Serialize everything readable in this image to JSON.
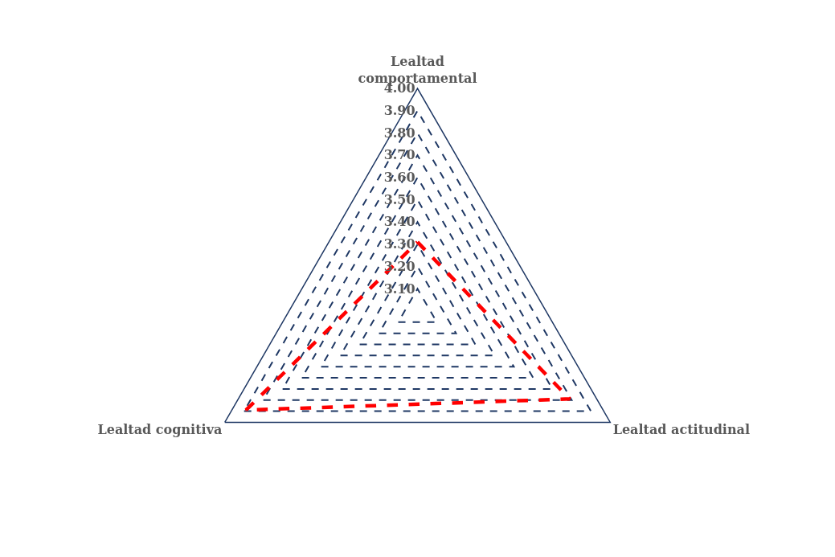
{
  "chart_data": {
    "type": "radar",
    "categories": [
      "Lealtad comportamental",
      "Lealtad actitudinal",
      "Lealtad cognitiva"
    ],
    "series": [
      {
        "color": "#ff0000",
        "values": [
          3.31,
          3.79,
          3.89
        ]
      }
    ],
    "ylim": [
      3,
      4
    ],
    "yticks": [
      {
        "value": 3.1,
        "label": "3.10"
      },
      {
        "value": 3.2,
        "label": "3.20"
      },
      {
        "value": 3.3,
        "label": "3.30"
      },
      {
        "value": 3.4,
        "label": "3.40"
      },
      {
        "value": 3.5,
        "label": "3.50"
      },
      {
        "value": 3.6,
        "label": "3.60"
      },
      {
        "value": 3.7,
        "label": "3.70"
      },
      {
        "value": 3.8,
        "label": "3.80"
      },
      {
        "value": 3.9,
        "label": "3.90"
      },
      {
        "value": 4,
        "label": "4.00"
      }
    ],
    "grid": true,
    "marker": "none",
    "line_style": "dashed"
  }
}
